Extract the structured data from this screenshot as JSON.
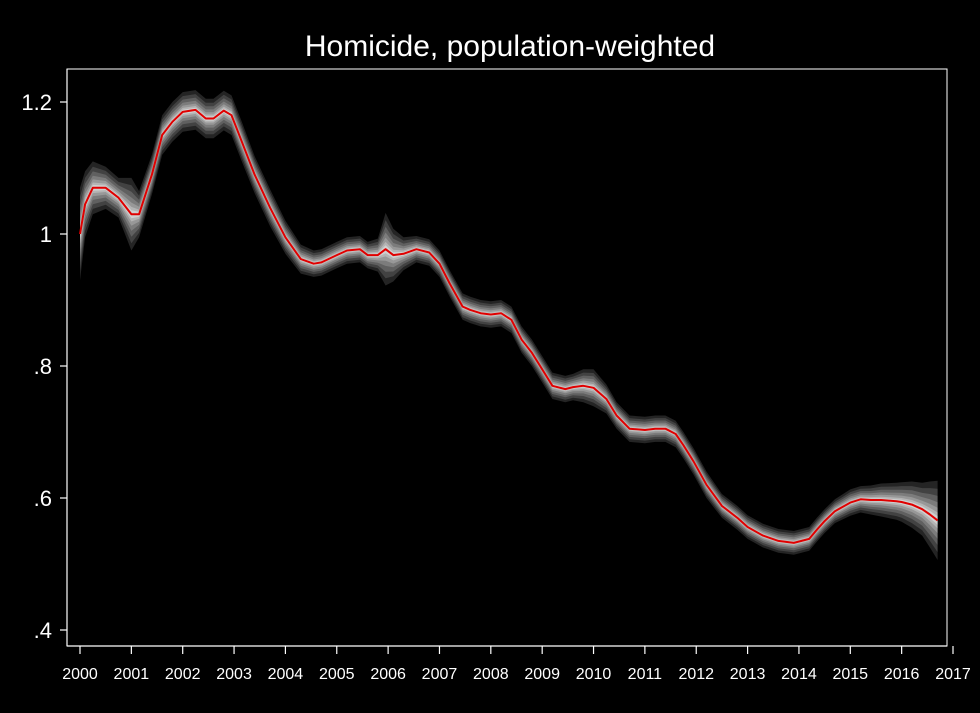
{
  "chart_data": {
    "type": "line",
    "title": "Homicide, population-weighted",
    "xlabel": "",
    "ylabel": "",
    "xlim": [
      2000,
      2017
    ],
    "ylim": [
      0.4,
      1.25
    ],
    "x_ticks": [
      2000,
      2001,
      2002,
      2003,
      2004,
      2005,
      2006,
      2007,
      2008,
      2009,
      2010,
      2011,
      2012,
      2013,
      2014,
      2015,
      2016,
      2017
    ],
    "x_tick_labels": [
      "2000",
      "2001",
      "2002",
      "2003",
      "2004",
      "2005",
      "2006",
      "2007",
      "2008",
      "2009",
      "2010",
      "2011",
      "2012",
      "2013",
      "2014",
      "2015",
      "2016",
      "2017"
    ],
    "y_ticks": [
      0.4,
      0.6,
      0.8,
      1.0,
      1.2
    ],
    "y_tick_labels": [
      ".4",
      ".6",
      ".8",
      "1",
      "1.2"
    ],
    "grid": false,
    "background": "#000000",
    "series": [
      {
        "line_color": "#e00000",
        "band_color": "#ffffff",
        "x": [
          2000.0,
          2000.1,
          2000.25,
          2000.5,
          2000.75,
          2001.0,
          2001.15,
          2001.4,
          2001.6,
          2001.8,
          2002.0,
          2002.25,
          2002.45,
          2002.6,
          2002.8,
          2002.95,
          2003.15,
          2003.4,
          2003.7,
          2004.0,
          2004.3,
          2004.55,
          2004.7,
          2005.0,
          2005.2,
          2005.45,
          2005.6,
          2005.8,
          2005.95,
          2006.1,
          2006.3,
          2006.55,
          2006.8,
          2007.0,
          2007.2,
          2007.45,
          2007.6,
          2007.8,
          2008.0,
          2008.2,
          2008.4,
          2008.6,
          2008.8,
          2009.0,
          2009.2,
          2009.45,
          2009.6,
          2009.8,
          2010.0,
          2010.25,
          2010.45,
          2010.7,
          2011.0,
          2011.2,
          2011.4,
          2011.6,
          2011.75,
          2011.95,
          2012.2,
          2012.5,
          2012.8,
          2013.0,
          2013.3,
          2013.6,
          2013.9,
          2014.2,
          2014.35,
          2014.5,
          2014.7,
          2015.0,
          2015.2,
          2015.4,
          2015.6,
          2015.9,
          2016.0,
          2016.2,
          2016.4,
          2016.55,
          2016.7
        ],
        "y": [
          1.0,
          1.045,
          1.07,
          1.07,
          1.055,
          1.03,
          1.03,
          1.09,
          1.15,
          1.17,
          1.185,
          1.188,
          1.175,
          1.175,
          1.187,
          1.18,
          1.14,
          1.09,
          1.04,
          0.995,
          0.962,
          0.955,
          0.957,
          0.968,
          0.975,
          0.977,
          0.968,
          0.968,
          0.977,
          0.968,
          0.97,
          0.977,
          0.972,
          0.955,
          0.925,
          0.89,
          0.885,
          0.88,
          0.878,
          0.88,
          0.87,
          0.84,
          0.82,
          0.795,
          0.77,
          0.765,
          0.768,
          0.77,
          0.767,
          0.75,
          0.725,
          0.705,
          0.703,
          0.705,
          0.705,
          0.697,
          0.68,
          0.655,
          0.62,
          0.588,
          0.57,
          0.556,
          0.543,
          0.535,
          0.532,
          0.538,
          0.552,
          0.565,
          0.58,
          0.593,
          0.598,
          0.597,
          0.597,
          0.595,
          0.594,
          0.59,
          0.583,
          0.575,
          0.566
        ],
        "band_halfwidth": [
          0.07,
          0.05,
          0.04,
          0.032,
          0.03,
          0.055,
          0.035,
          0.03,
          0.03,
          0.03,
          0.03,
          0.03,
          0.03,
          0.03,
          0.03,
          0.03,
          0.03,
          0.028,
          0.028,
          0.025,
          0.022,
          0.02,
          0.02,
          0.02,
          0.02,
          0.02,
          0.02,
          0.025,
          0.055,
          0.04,
          0.025,
          0.02,
          0.02,
          0.02,
          0.02,
          0.02,
          0.02,
          0.02,
          0.02,
          0.02,
          0.02,
          0.02,
          0.02,
          0.02,
          0.02,
          0.02,
          0.02,
          0.025,
          0.028,
          0.022,
          0.02,
          0.02,
          0.02,
          0.02,
          0.02,
          0.02,
          0.02,
          0.02,
          0.02,
          0.018,
          0.018,
          0.018,
          0.018,
          0.018,
          0.018,
          0.018,
          0.018,
          0.018,
          0.018,
          0.02,
          0.02,
          0.022,
          0.025,
          0.028,
          0.03,
          0.035,
          0.04,
          0.05,
          0.06
        ]
      }
    ]
  }
}
